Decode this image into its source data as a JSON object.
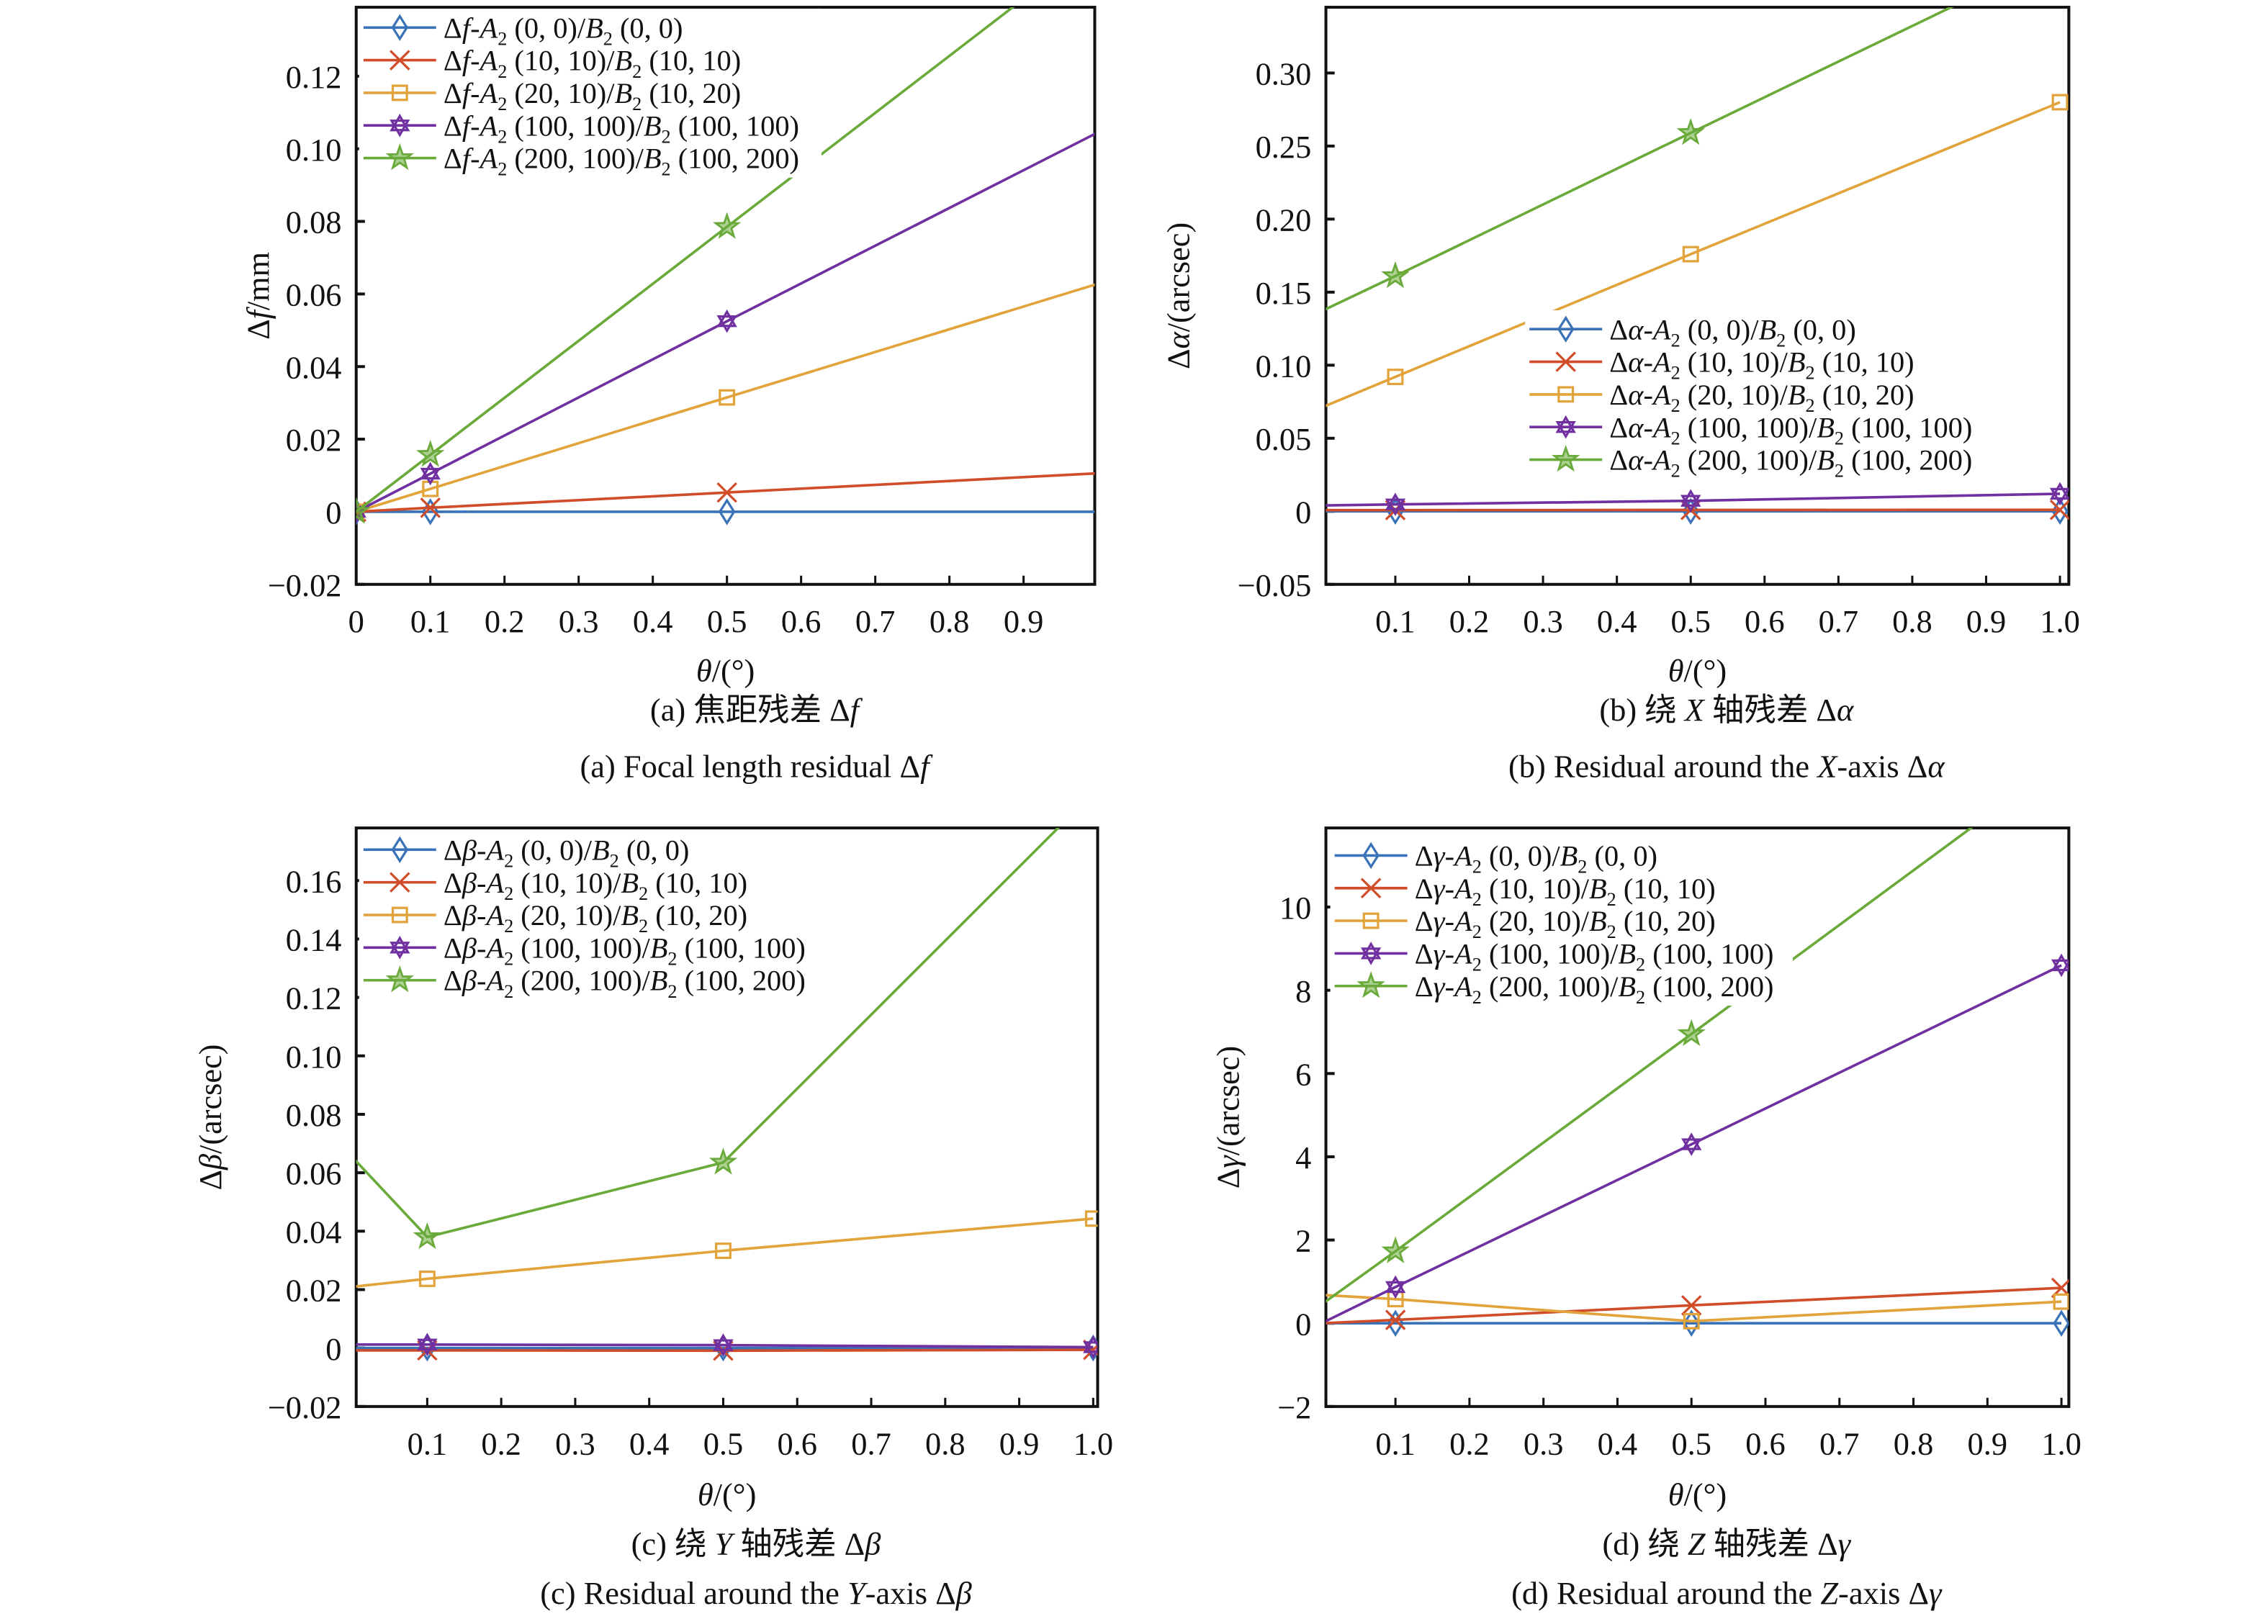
{
  "figure": {
    "series_style": [
      {
        "color": "#3A72B8",
        "marker": "diamond"
      },
      {
        "color": "#D14D2A",
        "marker": "x"
      },
      {
        "color": "#E2A33A",
        "marker": "square"
      },
      {
        "color": "#7030A0",
        "marker": "hexagram"
      },
      {
        "color": "#6AAA3A",
        "marker": "pentagram"
      }
    ]
  },
  "chart_data": [
    {
      "id": "a",
      "type": "line",
      "title_cn": "(a) 焦距残差 Δf",
      "title_en": "(a) Focal length residual Δf",
      "xlabel": "θ/(°)",
      "ylabel": "Δf/mm",
      "xlim": [
        0,
        0.996
      ],
      "ylim": [
        -0.02,
        0.139
      ],
      "xticks": [
        0,
        0.1,
        0.2,
        0.3,
        0.4,
        0.5,
        0.6,
        0.7,
        0.8,
        0.9
      ],
      "xtick_labels": [
        "0",
        "0.1",
        "0.2",
        "0.3",
        "0.4",
        "0.5",
        "0.6",
        "0.7",
        "0.8",
        "0.9"
      ],
      "yticks": [
        -0.02,
        0,
        0.02,
        0.04,
        0.06,
        0.08,
        0.1,
        0.12
      ],
      "ytick_labels": [
        "−0.02",
        "0",
        "0.02",
        "0.04",
        "0.06",
        "0.08",
        "0.10",
        "0.12"
      ],
      "grid": false,
      "legend_position": "top-left",
      "series": [
        {
          "name": "Δf-A₂ (0, 0)/B₂ (0, 0)",
          "x": [
            0,
            0.1,
            0.5,
            1.0
          ],
          "y": [
            0,
            0,
            0,
            0
          ],
          "markers_at": [
            0,
            0.1,
            0.5
          ]
        },
        {
          "name": "Δf-A₂ (10, 10)/B₂ (10, 10)",
          "x": [
            0,
            0.1,
            0.5,
            1.0
          ],
          "y": [
            0,
            0.0011,
            0.0053,
            0.0106
          ],
          "markers_at": [
            0,
            0.1,
            0.5
          ]
        },
        {
          "name": "Δf-A₂ (20, 10)/B₂ (10, 20)",
          "x": [
            0,
            0.1,
            0.5,
            1.0
          ],
          "y": [
            0,
            0.0063,
            0.0315,
            0.0628
          ],
          "markers_at": [
            0,
            0.1,
            0.5
          ]
        },
        {
          "name": "Δf-A₂ (100, 100)/B₂ (100, 100)",
          "x": [
            0,
            0.1,
            0.5,
            1.0
          ],
          "y": [
            0,
            0.0105,
            0.0525,
            0.1045
          ],
          "markers_at": [
            0,
            0.1,
            0.5
          ]
        },
        {
          "name": "Δf-A₂ (200, 100)/B₂ (100, 200)",
          "x": [
            0,
            0.1,
            0.5,
            1.0
          ],
          "y": [
            0,
            0.0157,
            0.0785,
            0.157
          ],
          "markers_at": [
            0,
            0.1,
            0.5
          ]
        }
      ],
      "legend_labels": [
        {
          "prefix": "Δ",
          "sym": "f",
          "rest1": "-",
          "a": "A",
          "args1": " (0, 0)/",
          "b": "B",
          "args2": " (0, 0)"
        },
        {
          "prefix": "Δ",
          "sym": "f",
          "rest1": "-",
          "a": "A",
          "args1": " (10, 10)/",
          "b": "B",
          "args2": " (10, 10)"
        },
        {
          "prefix": "Δ",
          "sym": "f",
          "rest1": "-",
          "a": "A",
          "args1": " (20, 10)/",
          "b": "B",
          "args2": " (10, 20)"
        },
        {
          "prefix": "Δ",
          "sym": "f",
          "rest1": "-",
          "a": "A",
          "args1": " (100, 100)/",
          "b": "B",
          "args2": " (100, 100)"
        },
        {
          "prefix": "Δ",
          "sym": "f",
          "rest1": "-",
          "a": "A",
          "args1": " (200, 100)/",
          "b": "B",
          "args2": " (100, 200)"
        }
      ]
    },
    {
      "id": "b",
      "type": "line",
      "title_cn": "(b) 绕 X 轴残差 Δα",
      "title_en": "(b) Residual around the X-axis Δα",
      "xlabel": "θ/(°)",
      "ylabel": "Δα/(arcsec)",
      "xlim": [
        0.006,
        1.012
      ],
      "ylim": [
        -0.05,
        0.345
      ],
      "xticks": [
        0.1,
        0.2,
        0.3,
        0.4,
        0.5,
        0.6,
        0.7,
        0.8,
        0.9,
        1.0
      ],
      "xtick_labels": [
        "0.1",
        "0.2",
        "0.3",
        "0.4",
        "0.5",
        "0.6",
        "0.7",
        "0.8",
        "0.9",
        "1.0"
      ],
      "yticks": [
        -0.05,
        0,
        0.05,
        0.1,
        0.15,
        0.2,
        0.25,
        0.3
      ],
      "ytick_labels": [
        "−0.05",
        "0",
        "0.05",
        "0.10",
        "0.15",
        "0.20",
        "0.25",
        "0.30"
      ],
      "grid": false,
      "legend_position": "center-right",
      "series": [
        {
          "name": "Δα-A₂ (0, 0)/B₂ (0, 0)",
          "x": [
            0,
            0.1,
            0.5,
            1.0
          ],
          "y": [
            0,
            0,
            0,
            0
          ],
          "markers_at": [
            0.1,
            0.5,
            1.0
          ]
        },
        {
          "name": "Δα-A₂ (10, 10)/B₂ (10, 10)",
          "x": [
            0,
            0.1,
            0.5,
            1.0
          ],
          "y": [
            0.0008,
            0.0008,
            0.0009,
            0.001
          ],
          "markers_at": [
            0.1,
            0.5,
            1.0
          ]
        },
        {
          "name": "Δα-A₂ (20, 10)/B₂ (10, 20)",
          "x": [
            0,
            0.1,
            0.5,
            1.0
          ],
          "y": [
            0.071,
            0.092,
            0.176,
            0.28
          ],
          "markers_at": [
            0.1,
            0.5,
            1.0
          ]
        },
        {
          "name": "Δα-A₂ (100, 100)/B₂ (100, 100)",
          "x": [
            0,
            0.1,
            0.5,
            1.0
          ],
          "y": [
            0.004,
            0.0047,
            0.0072,
            0.012
          ],
          "markers_at": [
            0.1,
            0.5,
            1.0
          ]
        },
        {
          "name": "Δα-A₂ (200, 100)/B₂ (100, 200)",
          "x": [
            0,
            0.1,
            0.5,
            1.0
          ],
          "y": [
            0.137,
            0.161,
            0.259,
            0.381
          ],
          "markers_at": [
            0.1,
            0.5
          ]
        }
      ],
      "legend_labels": [
        {
          "prefix": "Δ",
          "sym": "α",
          "rest1": "-",
          "a": "A",
          "args1": " (0, 0)/",
          "b": "B",
          "args2": " (0, 0)"
        },
        {
          "prefix": "Δ",
          "sym": "α",
          "rest1": "-",
          "a": "A",
          "args1": " (10, 10)/",
          "b": "B",
          "args2": " (10, 10)"
        },
        {
          "prefix": "Δ",
          "sym": "α",
          "rest1": "-",
          "a": "A",
          "args1": " (20, 10)/",
          "b": "B",
          "args2": " (10, 20)"
        },
        {
          "prefix": "Δ",
          "sym": "α",
          "rest1": "-",
          "a": "A",
          "args1": " (100, 100)/",
          "b": "B",
          "args2": " (100, 100)"
        },
        {
          "prefix": "Δ",
          "sym": "α",
          "rest1": "-",
          "a": "A",
          "args1": " (200, 100)/",
          "b": "B",
          "args2": " (100, 200)"
        }
      ]
    },
    {
      "id": "c",
      "type": "line",
      "title_cn": "(c) 绕 Y 轴残差 Δβ",
      "title_en": "(c) Residual around the Y-axis Δβ",
      "xlabel": "θ/(°)",
      "ylabel": "Δβ/(arcsec)",
      "xlim": [
        0.004,
        1.006
      ],
      "ylim": [
        -0.02,
        0.178
      ],
      "xticks": [
        0.1,
        0.2,
        0.3,
        0.4,
        0.5,
        0.6,
        0.7,
        0.8,
        0.9,
        1.0
      ],
      "xtick_labels": [
        "0.1",
        "0.2",
        "0.3",
        "0.4",
        "0.5",
        "0.6",
        "0.7",
        "0.8",
        "0.9",
        "1.0"
      ],
      "yticks": [
        -0.02,
        0,
        0.02,
        0.04,
        0.06,
        0.08,
        0.1,
        0.12,
        0.14,
        0.16
      ],
      "ytick_labels": [
        "−0.02",
        "0",
        "0.02",
        "0.04",
        "0.06",
        "0.08",
        "0.10",
        "0.12",
        "0.14",
        "0.16"
      ],
      "grid": false,
      "legend_position": "top-left",
      "series": [
        {
          "name": "Δβ-A₂ (0, 0)/B₂ (0, 0)",
          "x": [
            0,
            0.1,
            0.5,
            1.0
          ],
          "y": [
            0,
            0,
            0,
            0
          ],
          "markers_at": [
            0.1,
            0.5,
            1.0
          ]
        },
        {
          "name": "Δβ-A₂ (10, 10)/B₂ (10, 10)",
          "x": [
            0,
            0.1,
            0.5,
            1.0
          ],
          "y": [
            -0.0008,
            -0.0008,
            -0.0009,
            -0.0006
          ],
          "markers_at": [
            0.1,
            0.5,
            1.0
          ]
        },
        {
          "name": "Δβ-A₂ (20, 10)/B₂ (10, 20)",
          "x": [
            0,
            0.1,
            0.5,
            1.0
          ],
          "y": [
            0.021,
            0.0237,
            0.0333,
            0.0443
          ],
          "markers_at": [
            0.1,
            0.5,
            1.0
          ]
        },
        {
          "name": "Δβ-A₂ (100, 100)/B₂ (100, 100)",
          "x": [
            0,
            0.1,
            0.5,
            1.0
          ],
          "y": [
            0.0012,
            0.0012,
            0.001,
            0.0003
          ],
          "markers_at": [
            0.1,
            0.5,
            1.0
          ]
        },
        {
          "name": "Δβ-A₂ (200, 100)/B₂ (100, 200)",
          "x": [
            0,
            0.1,
            0.5,
            1.0
          ],
          "y": [
            0.065,
            0.038,
            0.0635,
            0.19
          ],
          "markers_at": [
            0.1,
            0.5
          ]
        }
      ],
      "legend_labels": [
        {
          "prefix": "Δ",
          "sym": "β",
          "rest1": "-",
          "a": "A",
          "args1": " (0, 0)/",
          "b": "B",
          "args2": " (0, 0)"
        },
        {
          "prefix": "Δ",
          "sym": "β",
          "rest1": "-",
          "a": "A",
          "args1": " (10, 10)/",
          "b": "B",
          "args2": " (10, 10)"
        },
        {
          "prefix": "Δ",
          "sym": "β",
          "rest1": "-",
          "a": "A",
          "args1": " (20, 10)/",
          "b": "B",
          "args2": " (10, 20)"
        },
        {
          "prefix": "Δ",
          "sym": "β",
          "rest1": "-",
          "a": "A",
          "args1": " (100, 100)/",
          "b": "B",
          "args2": " (100, 100)"
        },
        {
          "prefix": "Δ",
          "sym": "β",
          "rest1": "-",
          "a": "A",
          "args1": " (200, 100)/",
          "b": "B",
          "args2": " (100, 200)"
        }
      ]
    },
    {
      "id": "d",
      "type": "line",
      "title_cn": "(d) 绕 Z 轴残差 Δγ",
      "title_en": "(d) Residual around the Z-axis Δγ",
      "xlabel": "θ/(°)",
      "ylabel": "Δγ/(arcsec)",
      "xlim": [
        0.006,
        1.01
      ],
      "ylim": [
        -2,
        11.9
      ],
      "xticks": [
        0.1,
        0.2,
        0.3,
        0.4,
        0.5,
        0.6,
        0.7,
        0.8,
        0.9,
        1.0
      ],
      "xtick_labels": [
        "0.1",
        "0.2",
        "0.3",
        "0.4",
        "0.5",
        "0.6",
        "0.7",
        "0.8",
        "0.9",
        "1.0"
      ],
      "yticks": [
        -2,
        0,
        2,
        4,
        6,
        8,
        10
      ],
      "ytick_labels": [
        "−2",
        "0",
        "2",
        "4",
        "6",
        "8",
        "10"
      ],
      "grid": false,
      "legend_position": "top-left",
      "series": [
        {
          "name": "Δγ-A₂ (0, 0)/B₂ (0, 0)",
          "x": [
            0,
            0.1,
            0.5,
            1.0
          ],
          "y": [
            0,
            0,
            0,
            0
          ],
          "markers_at": [
            0.1,
            0.5,
            1.0
          ]
        },
        {
          "name": "Δγ-A₂ (10, 10)/B₂ (10, 10)",
          "x": [
            0,
            0.1,
            0.5,
            1.0
          ],
          "y": [
            0,
            0.08,
            0.43,
            0.85
          ],
          "markers_at": [
            0.1,
            0.5,
            1.0
          ]
        },
        {
          "name": "Δγ-A₂ (20, 10)/B₂ (10, 20)",
          "x": [
            0,
            0.1,
            0.5,
            1.0
          ],
          "y": [
            0.68,
            0.58,
            0.05,
            0.52
          ],
          "markers_at": [
            0.1,
            0.5,
            1.0
          ]
        },
        {
          "name": "Δγ-A₂ (100, 100)/B₂ (100, 100)",
          "x": [
            0,
            0.1,
            0.5,
            1.0
          ],
          "y": [
            0,
            0.87,
            4.3,
            8.6
          ],
          "markers_at": [
            0.1,
            0.5,
            1.0
          ]
        },
        {
          "name": "Δγ-A₂ (200, 100)/B₂ (100, 200)",
          "x": [
            0,
            0.1,
            0.5,
            1.0
          ],
          "y": [
            0.45,
            1.73,
            6.95,
            13.5
          ],
          "markers_at": [
            0.1,
            0.5
          ]
        }
      ],
      "legend_labels": [
        {
          "prefix": "Δ",
          "sym": "γ",
          "rest1": "-",
          "a": "A",
          "args1": " (0, 0)/",
          "b": "B",
          "args2": " (0, 0)"
        },
        {
          "prefix": "Δ",
          "sym": "γ",
          "rest1": "-",
          "a": "A",
          "args1": " (10, 10)/",
          "b": "B",
          "args2": " (10, 10)"
        },
        {
          "prefix": "Δ",
          "sym": "γ",
          "rest1": "-",
          "a": "A",
          "args1": " (20, 10)/",
          "b": "B",
          "args2": " (10, 20)"
        },
        {
          "prefix": "Δ",
          "sym": "γ",
          "rest1": "-",
          "a": "A",
          "args1": " (100, 100)/",
          "b": "B",
          "args2": " (100, 100)"
        },
        {
          "prefix": "Δ",
          "sym": "γ",
          "rest1": "-",
          "a": "A",
          "args1": " (200, 100)/",
          "b": "B",
          "args2": " (100, 200)"
        }
      ]
    }
  ]
}
